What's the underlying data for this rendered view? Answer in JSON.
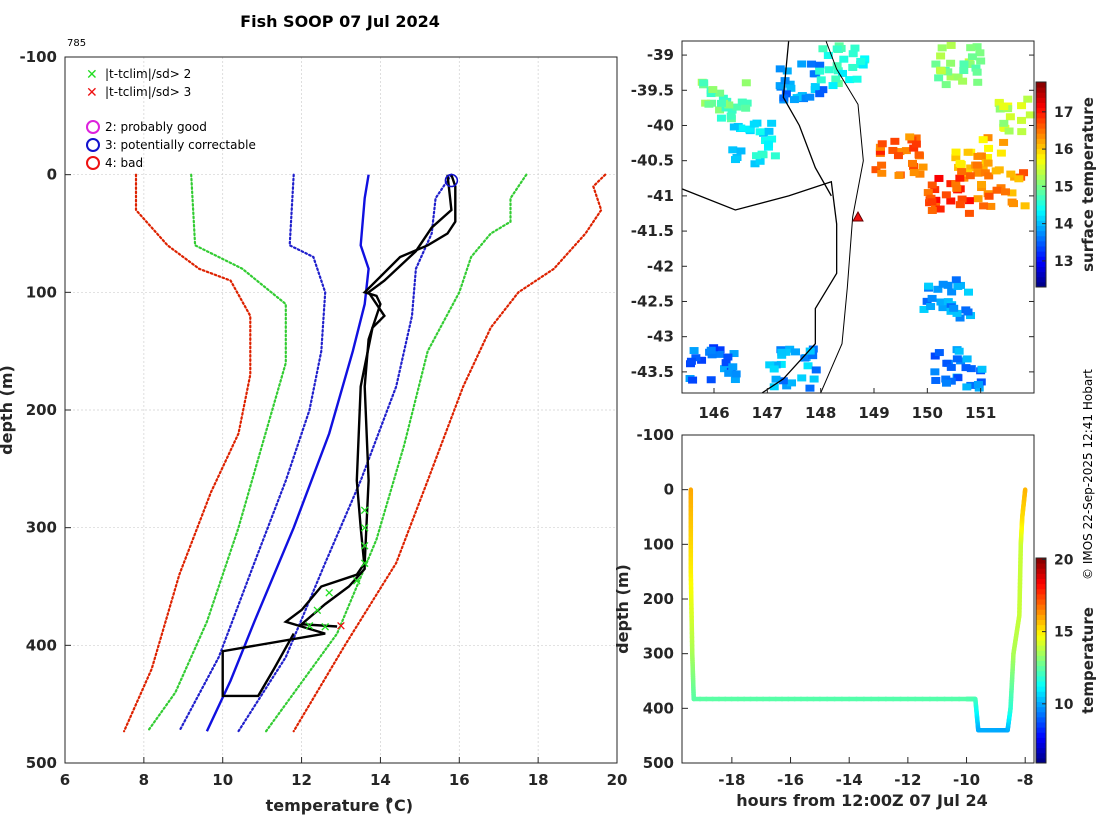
{
  "title": "Fish SOOP 07 Jul 2024",
  "drop_id": "785",
  "credit": "© IMOS 22-Sep-2025 12:41 Hobart",
  "colors": {
    "flag2": "#22dd22",
    "flag3": "#ee1111",
    "good": "#dd22dd",
    "correctable": "#1111cc",
    "bad": "#ee1111",
    "clim_mean": "#1010e0",
    "clim_sd1": "#2020cc",
    "clim_sd2": "#33cc33",
    "clim_sd3": "#dd2200",
    "profile": "#000000"
  },
  "legend": {
    "flags": [
      "|t-tclim|/sd> 2",
      "|t-tclim|/sd> 3"
    ],
    "quality": [
      "2: probably good",
      "3: potentially correctable",
      "4: bad"
    ]
  },
  "chart_data": [
    {
      "id": "profile",
      "type": "line",
      "title": "Fish SOOP 07 Jul 2024",
      "xlabel": "temperature (o C)",
      "ylabel": "depth (m)",
      "xlim": [
        6,
        20
      ],
      "ylim": [
        500,
        -100
      ],
      "xticks": [
        6,
        8,
        10,
        12,
        14,
        16,
        18,
        20
      ],
      "yticks": [
        -100,
        0,
        100,
        200,
        300,
        400,
        500
      ],
      "grid": true,
      "legend_position": "top-left",
      "series": [
        {
          "name": "clim -3sd",
          "style": "dotted",
          "color": "#dd2200",
          "points": [
            [
              7.8,
              0
            ],
            [
              7.8,
              30
            ],
            [
              8.6,
              60
            ],
            [
              9.4,
              80
            ],
            [
              10.2,
              90
            ],
            [
              10.7,
              120
            ],
            [
              10.7,
              170
            ],
            [
              10.4,
              220
            ],
            [
              9.7,
              270
            ],
            [
              8.9,
              340
            ],
            [
              8.2,
              420
            ],
            [
              7.5,
              473
            ]
          ]
        },
        {
          "name": "clim -2sd",
          "style": "dotted",
          "color": "#33cc33",
          "points": [
            [
              9.2,
              0
            ],
            [
              9.3,
              60
            ],
            [
              10.5,
              80
            ],
            [
              11.6,
              110
            ],
            [
              11.6,
              160
            ],
            [
              11.0,
              230
            ],
            [
              10.4,
              300
            ],
            [
              9.6,
              380
            ],
            [
              8.8,
              440
            ],
            [
              8.1,
              473
            ]
          ]
        },
        {
          "name": "clim -1sd",
          "style": "dotted",
          "color": "#2020cc",
          "points": [
            [
              11.8,
              0
            ],
            [
              11.7,
              60
            ],
            [
              12.3,
              70
            ],
            [
              12.6,
              100
            ],
            [
              12.5,
              150
            ],
            [
              12.2,
              200
            ],
            [
              11.6,
              260
            ],
            [
              10.8,
              330
            ],
            [
              9.9,
              410
            ],
            [
              8.9,
              473
            ]
          ]
        },
        {
          "name": "clim mean",
          "style": "solid",
          "color": "#1010e0",
          "points": [
            [
              13.7,
              0
            ],
            [
              13.6,
              20
            ],
            [
              13.5,
              60
            ],
            [
              13.7,
              80
            ],
            [
              13.6,
              110
            ],
            [
              13.3,
              150
            ],
            [
              12.7,
              220
            ],
            [
              11.8,
              300
            ],
            [
              10.8,
              380
            ],
            [
              10.2,
              430
            ],
            [
              9.6,
              473
            ]
          ]
        },
        {
          "name": "clim +1sd",
          "style": "dotted",
          "color": "#2020cc",
          "points": [
            [
              15.8,
              0
            ],
            [
              15.4,
              20
            ],
            [
              15.3,
              50
            ],
            [
              14.9,
              80
            ],
            [
              14.8,
              120
            ],
            [
              14.4,
              180
            ],
            [
              13.5,
              260
            ],
            [
              12.6,
              330
            ],
            [
              11.6,
              410
            ],
            [
              10.4,
              473
            ]
          ]
        },
        {
          "name": "clim +2sd",
          "style": "dotted",
          "color": "#33cc33",
          "points": [
            [
              17.7,
              0
            ],
            [
              17.3,
              20
            ],
            [
              17.3,
              40
            ],
            [
              16.8,
              50
            ],
            [
              16.3,
              70
            ],
            [
              16.0,
              100
            ],
            [
              15.2,
              150
            ],
            [
              14.6,
              230
            ],
            [
              13.9,
              310
            ],
            [
              12.9,
              390
            ],
            [
              11.1,
              473
            ]
          ]
        },
        {
          "name": "clim +3sd",
          "style": "dotted",
          "color": "#dd2200",
          "points": [
            [
              19.7,
              0
            ],
            [
              19.4,
              10
            ],
            [
              19.6,
              30
            ],
            [
              19.2,
              50
            ],
            [
              18.4,
              80
            ],
            [
              17.5,
              100
            ],
            [
              16.8,
              130
            ],
            [
              16.1,
              180
            ],
            [
              15.2,
              260
            ],
            [
              14.4,
              330
            ],
            [
              13.1,
              400
            ],
            [
              11.8,
              473
            ]
          ]
        },
        {
          "name": "profile A",
          "style": "solid",
          "color": "#000000",
          "points": [
            [
              15.8,
              0
            ],
            [
              15.9,
              10
            ],
            [
              15.9,
              40
            ],
            [
              15.7,
              50
            ],
            [
              15.2,
              60
            ],
            [
              14.5,
              70
            ],
            [
              13.6,
              100
            ],
            [
              13.9,
              103
            ],
            [
              14.0,
              110
            ],
            [
              13.7,
              140
            ],
            [
              13.6,
              180
            ],
            [
              13.7,
              260
            ],
            [
              13.6,
              330
            ],
            [
              13.4,
              340
            ],
            [
              12.5,
              350
            ],
            [
              12.0,
              370
            ],
            [
              11.6,
              380
            ],
            [
              12.6,
              390
            ],
            [
              10.0,
              405
            ],
            [
              10.0,
              443
            ],
            [
              10.9,
              443
            ],
            [
              11.3,
              420
            ],
            [
              11.8,
              390
            ]
          ]
        },
        {
          "name": "profile B",
          "style": "solid",
          "color": "#000000",
          "points": [
            [
              15.7,
              0
            ],
            [
              15.8,
              30
            ],
            [
              15.3,
              45
            ],
            [
              14.9,
              65
            ],
            [
              14.1,
              90
            ],
            [
              13.7,
              100
            ],
            [
              14.1,
              120
            ],
            [
              13.8,
              130
            ],
            [
              13.5,
              180
            ],
            [
              13.4,
              260
            ],
            [
              13.5,
              300
            ],
            [
              13.6,
              335
            ],
            [
              13.2,
              350
            ],
            [
              12.6,
              365
            ],
            [
              12.0,
              382
            ],
            [
              12.9,
              384
            ]
          ]
        }
      ],
      "flag_markers": {
        "label": "|t-tclim|/sd> 2",
        "depths": [
          285,
          300,
          315,
          330,
          345,
          355,
          370,
          383,
          384
        ],
        "temps": [
          13.6,
          13.6,
          13.6,
          13.6,
          13.4,
          12.7,
          12.4,
          12.2,
          12.6
        ]
      },
      "flag3_markers": {
        "label": "|t-tclim|/sd> 3",
        "depths": [
          383
        ],
        "temps": [
          13.0
        ]
      },
      "circle_markers": {
        "label": "3: potentially correctable",
        "depths": [
          5
        ],
        "temps": [
          15.8
        ]
      }
    },
    {
      "id": "sst_map",
      "type": "heatmap",
      "xlabel": "",
      "ylabel": "",
      "xlim": [
        145.4,
        152.0
      ],
      "ylim": [
        -43.8,
        -38.8
      ],
      "xticks": [
        146,
        147,
        148,
        149,
        150,
        151
      ],
      "yticks": [
        -39,
        -39.5,
        -40,
        -40.5,
        -41,
        -41.5,
        -42,
        -42.5,
        -43,
        -43.5
      ],
      "colorbar_label": "surface temperature",
      "colorbar_range": [
        12.3,
        17.8
      ],
      "colorbar_ticks": [
        13,
        14,
        15,
        16,
        17
      ],
      "drop_location": [
        148.7,
        -41.3
      ],
      "patches": [
        {
          "lon": 146.1,
          "lat": -39.6,
          "value": 14.9
        },
        {
          "lon": 147.6,
          "lat": -39.3,
          "value": 13.8
        },
        {
          "lon": 148.3,
          "lat": -39.1,
          "value": 14.6
        },
        {
          "lon": 150.5,
          "lat": -39.1,
          "value": 15.1
        },
        {
          "lon": 150.9,
          "lat": -40.4,
          "value": 16.1
        },
        {
          "lon": 151.3,
          "lat": -40.8,
          "value": 16.4
        },
        {
          "lon": 150.3,
          "lat": -40.9,
          "value": 16.8
        },
        {
          "lon": 149.4,
          "lat": -40.4,
          "value": 16.6
        },
        {
          "lon": 150.3,
          "lat": -42.4,
          "value": 13.8
        },
        {
          "lon": 150.5,
          "lat": -43.4,
          "value": 13.7
        },
        {
          "lon": 145.9,
          "lat": -43.4,
          "value": 13.6
        },
        {
          "lon": 147.4,
          "lat": -43.4,
          "value": 13.9
        },
        {
          "lon": 146.7,
          "lat": -40.2,
          "value": 14.3
        },
        {
          "lon": 151.7,
          "lat": -39.8,
          "value": 15.4
        }
      ]
    },
    {
      "id": "depth_time",
      "type": "scatter",
      "xlabel": "hours from 12:00Z 07 Jul 24",
      "ylabel": "depth (m)",
      "xlim": [
        -19.7,
        -7.7
      ],
      "ylim": [
        500,
        -100
      ],
      "xticks": [
        -18,
        -16,
        -14,
        -12,
        -10,
        -8
      ],
      "yticks": [
        -100,
        0,
        100,
        200,
        300,
        400,
        500
      ],
      "colorbar_label": "temperature",
      "colorbar_range": [
        5.9,
        20.1
      ],
      "colorbar_ticks": [
        10,
        15,
        20
      ],
      "points": [
        [
          -19.4,
          0,
          16.0
        ],
        [
          -19.4,
          150,
          15.0
        ],
        [
          -19.35,
          300,
          13.6
        ],
        [
          -19.3,
          383,
          12.5
        ],
        [
          -15,
          383,
          12.4
        ],
        [
          -10.0,
          383,
          12.4
        ],
        [
          -9.7,
          383,
          12.3
        ],
        [
          -9.6,
          440,
          10.1
        ],
        [
          -8.6,
          440,
          10.0
        ],
        [
          -8.5,
          400,
          11.8
        ],
        [
          -8.4,
          300,
          13.6
        ],
        [
          -8.2,
          230,
          14.0
        ],
        [
          -8.15,
          100,
          14.0
        ],
        [
          -8.1,
          50,
          15.2
        ],
        [
          -8.0,
          0,
          15.8
        ]
      ]
    }
  ]
}
